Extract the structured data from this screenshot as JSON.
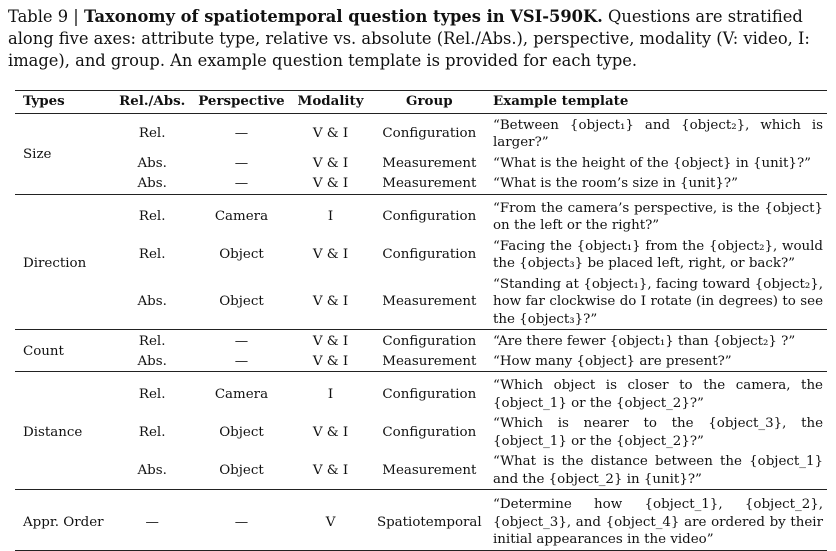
{
  "caption": {
    "prefix": "Table 9 | ",
    "title": "Taxonomy of spatiotemporal question types in VSI-590K.",
    "body": " Questions are stratified along five axes: attribute type, relative vs. absolute (Rel./Abs.), perspective, modality (V: video, I: image), and group. An example question template is provided for each type."
  },
  "headers": [
    "Types",
    "Rel./Abs.",
    "Perspective",
    "Modality",
    "Group",
    "Example template"
  ],
  "sections": [
    {
      "type": "Size",
      "rows": [
        {
          "rel": "Rel.",
          "persp": "—",
          "mod": "V & I",
          "group": "Configuration",
          "ex": "“Between {object₁} and {object₂}, which is larger?”"
        },
        {
          "rel": "Abs.",
          "persp": "—",
          "mod": "V & I",
          "group": "Measurement",
          "ex": "“What is the height of the {object} in {unit}?”"
        },
        {
          "rel": "Abs.",
          "persp": "—",
          "mod": "V & I",
          "group": "Measurement",
          "ex": "“What is the room’s size in {unit}?”"
        }
      ]
    },
    {
      "type": "Direction",
      "rows": [
        {
          "rel": "Rel.",
          "persp": "Camera",
          "mod": "I",
          "group": "Configuration",
          "ex": "“From the camera’s perspective, is the {object} on the left or the right?”"
        },
        {
          "rel": "Rel.",
          "persp": "Object",
          "mod": "V & I",
          "group": "Configuration",
          "ex": "“Facing the {object₁} from the {object₂}, would the {object₃} be placed left, right, or back?”"
        },
        {
          "rel": "Abs.",
          "persp": "Object",
          "mod": "V & I",
          "group": "Measurement",
          "ex": "“Standing at {object₁}, facing toward {object₂}, how far clockwise do I rotate (in degrees) to see the {object₃}?”"
        }
      ]
    },
    {
      "type": "Count",
      "rows": [
        {
          "rel": "Rel.",
          "persp": "—",
          "mod": "V & I",
          "group": "Configuration",
          "ex": "“Are there fewer {object₁} than {object₂} ?”"
        },
        {
          "rel": "Abs.",
          "persp": "—",
          "mod": "V & I",
          "group": "Measurement",
          "ex": "“How many {object} are present?”"
        }
      ]
    },
    {
      "type": "Distance",
      "rows": [
        {
          "rel": "Rel.",
          "persp": "Camera",
          "mod": "I",
          "group": "Configuration",
          "ex": "“Which object is closer to the camera, the {object_1} or the {object_2}?”"
        },
        {
          "rel": "Rel.",
          "persp": "Object",
          "mod": "V & I",
          "group": "Configuration",
          "ex": "“Which is nearer to the {object_3}, the {object_1} or the {object_2}?”"
        },
        {
          "rel": "Abs.",
          "persp": "Object",
          "mod": "V & I",
          "group": "Measurement",
          "ex": "“What is the distance between the {object_1} and the {object_2} in {unit}?”"
        }
      ]
    },
    {
      "type": "Appr. Order",
      "rows": [
        {
          "rel": "—",
          "persp": "—",
          "mod": "V",
          "group": "Spatiotemporal",
          "ex": "“Determine how {object_1}, {object_2}, {object_3}, and {object_4} are ordered by their initial appearances in the video”"
        }
      ]
    }
  ]
}
